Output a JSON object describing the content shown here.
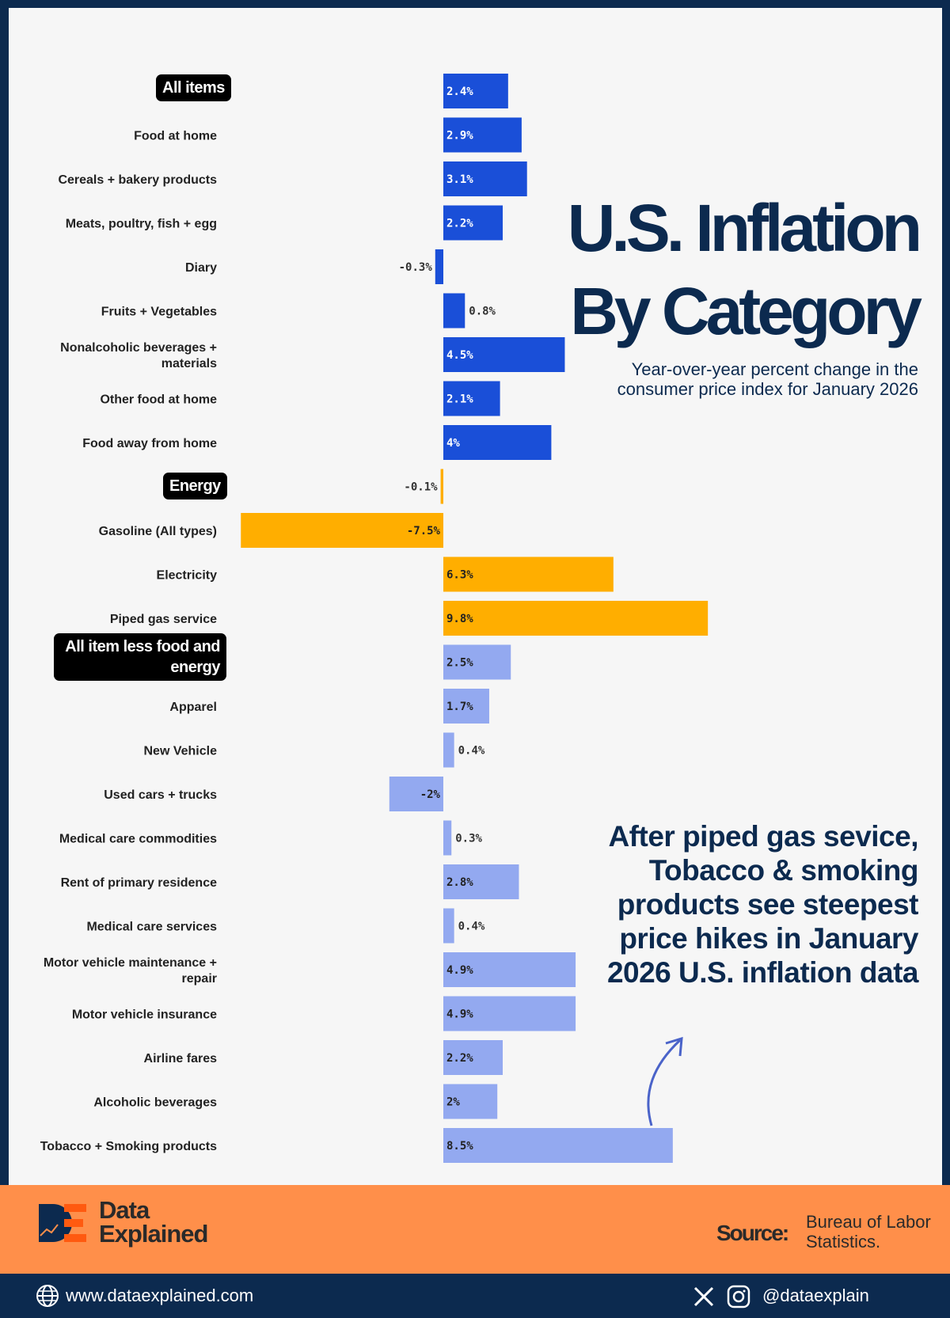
{
  "title_line1": "U.S. Inflation",
  "title_line2": "By Category",
  "subtitle": "Year-over-year percent change in the consumer price index for January 2026",
  "annotation": "After piped gas sevice, Tobacco & smoking products see steepest price hikes in January 2026 U.S. inflation data",
  "tags": {
    "all_items": "All items",
    "energy": "Energy",
    "core": "All item less food and energy"
  },
  "colors": {
    "food": "#1a4fd8",
    "energy": "#ffae00",
    "core": "#93a9f0",
    "navy": "#0c2a4f",
    "footer": "#ff8f4a"
  },
  "chart_data": {
    "type": "bar",
    "orientation": "horizontal",
    "unit": "%",
    "categories": [
      "All items",
      "Food at home",
      "Cereals + bakery products",
      "Meats, poultry, fish + egg",
      "Diary",
      "Fruits + Vegetables",
      "Nonalcoholic beverages + materials",
      "Other food at home",
      "Food away from home",
      "Energy",
      "Gasoline (All types)",
      "Electricity",
      "Piped gas service",
      "All item less food and energy",
      "Apparel",
      "New Vehicle",
      "Used cars + trucks",
      "Medical care commodities",
      "Rent of primary residence",
      "Medical care services",
      "Motor vehicle maintenance + repair",
      "Motor vehicle insurance",
      "Airline fares",
      "Alcoholic beverages",
      "Tobacco + Smoking products"
    ],
    "values": [
      2.4,
      2.9,
      3.1,
      2.2,
      -0.3,
      0.8,
      4.5,
      2.1,
      4,
      -0.1,
      -7.5,
      6.3,
      9.8,
      2.5,
      1.7,
      0.4,
      -2,
      0.3,
      2.8,
      0.4,
      4.9,
      4.9,
      2.2,
      2,
      8.5
    ],
    "data_labels": [
      "2.4%",
      "2.9%",
      "3.1%",
      "2.2%",
      "-0.3%",
      "0.8%",
      "4.5%",
      "2.1%",
      "4%",
      "-0.1%",
      "-7.5%",
      "6.3%",
      "9.8%",
      "2.5%",
      "1.7%",
      "0.4%",
      "-2%",
      "0.3%",
      "2.8%",
      "0.4%",
      "4.9%",
      "4.9%",
      "2.2%",
      "2%",
      "8.5%"
    ],
    "groups": [
      "food",
      "food",
      "food",
      "food",
      "food",
      "food",
      "food",
      "food",
      "food",
      "energy",
      "energy",
      "energy",
      "energy",
      "core",
      "core",
      "core",
      "core",
      "core",
      "core",
      "core",
      "core",
      "core",
      "core",
      "core",
      "core"
    ],
    "grid": false
  },
  "footer": {
    "brand_line1": "Data",
    "brand_line2": "Explained",
    "source_label": "Source:",
    "source_line1": "Bureau of Labor",
    "source_line2": "Statistics.",
    "website": "www.dataexplained.com",
    "handle": "@dataexplain"
  }
}
